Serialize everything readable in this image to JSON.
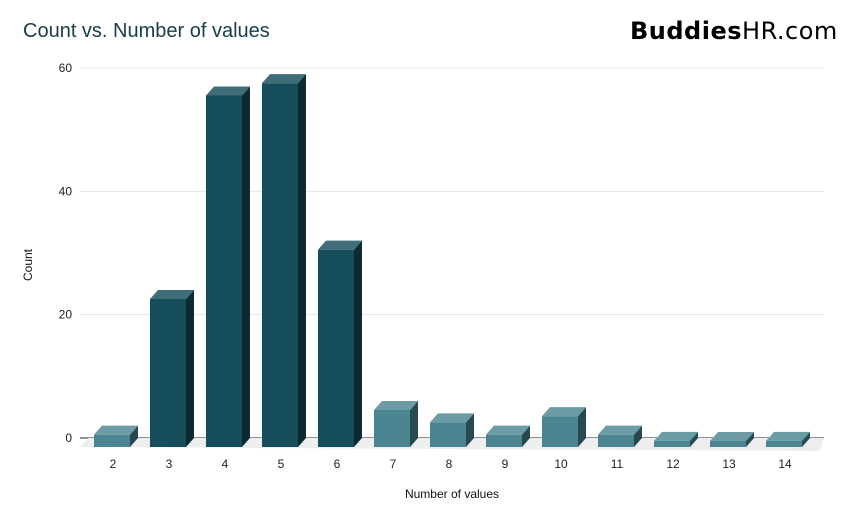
{
  "chart_data": {
    "type": "bar",
    "title": "Count vs. Number of values",
    "xlabel": "Number of values",
    "ylabel": "Count",
    "categories": [
      "2",
      "3",
      "4",
      "5",
      "6",
      "7",
      "8",
      "9",
      "10",
      "11",
      "12",
      "13",
      "14"
    ],
    "values": [
      2,
      24,
      57,
      59,
      32,
      6,
      4,
      2,
      5,
      2,
      1,
      0,
      1
    ],
    "yticks": [
      0,
      20,
      40,
      60
    ],
    "ylim": [
      0,
      60
    ],
    "grid": true,
    "colors": {
      "dark": "#154d5a",
      "light": "#4b8591"
    }
  },
  "watermark": {
    "bold": "Buddies",
    "regular": "HR.com"
  }
}
